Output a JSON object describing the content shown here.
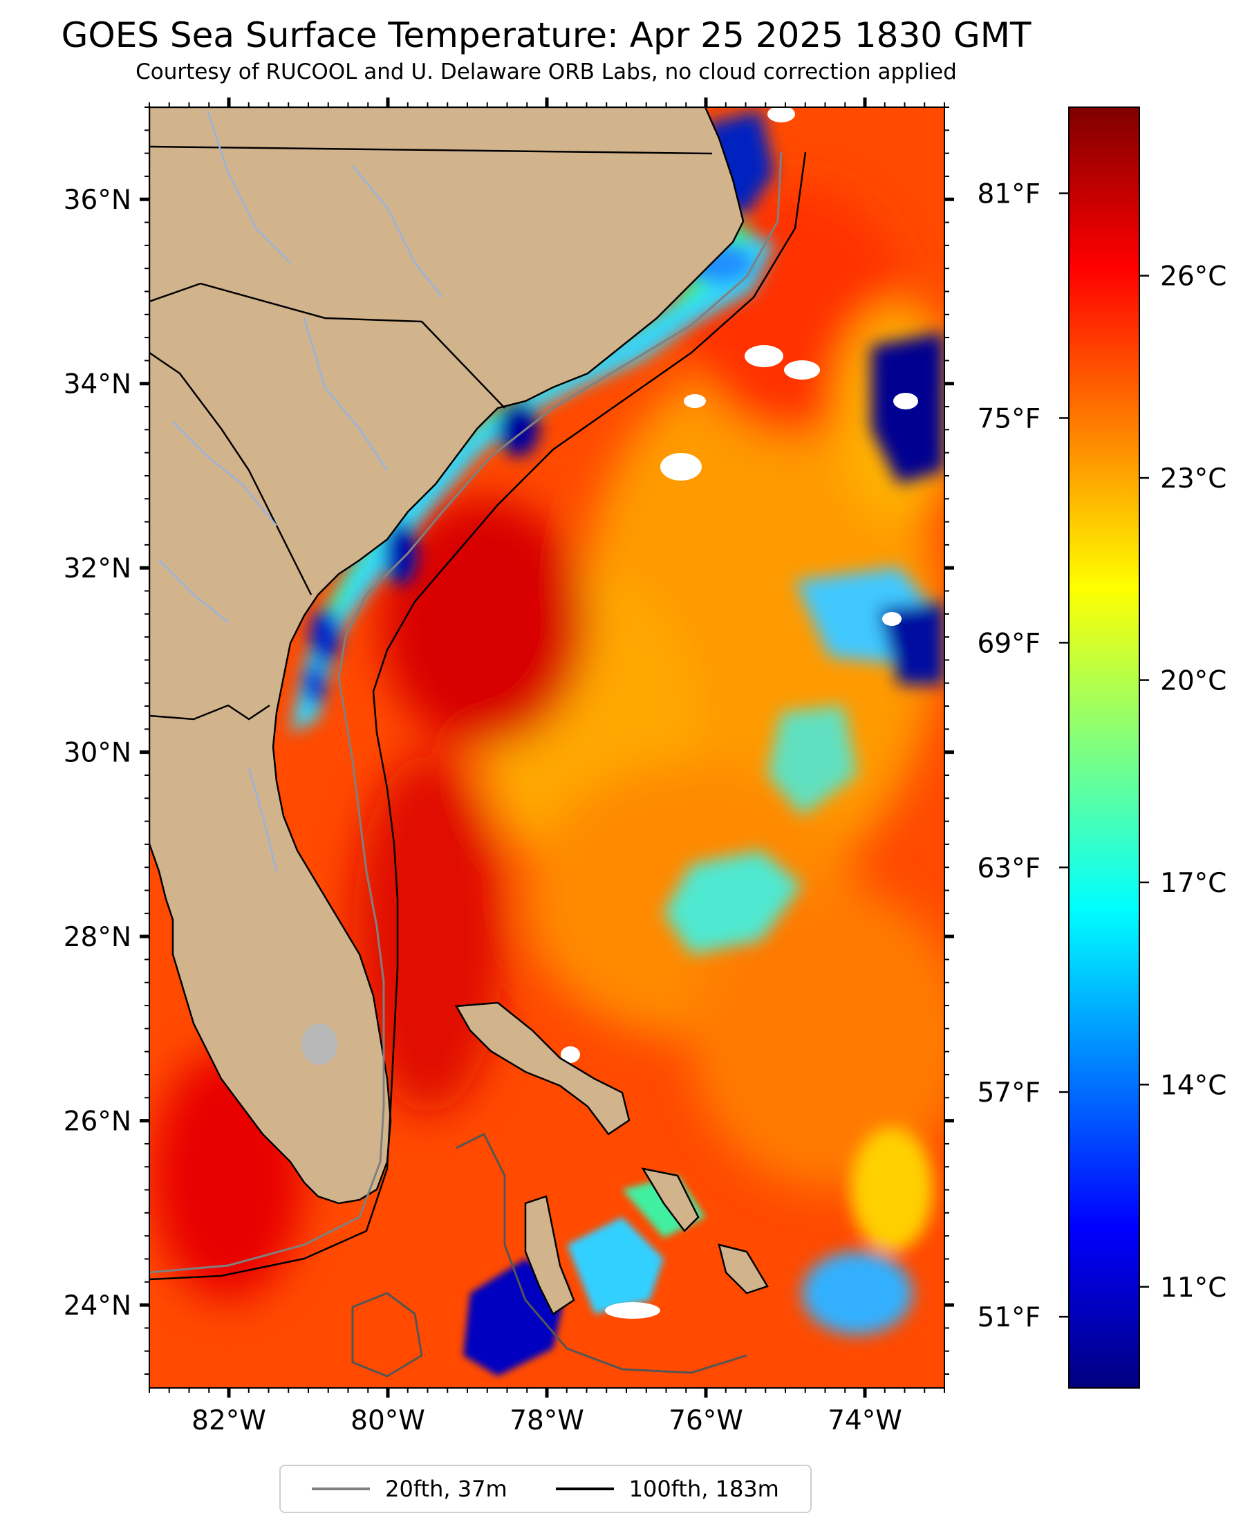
{
  "title": "GOES Sea Surface Temperature: Apr 25 2025 1830 GMT",
  "subtitle": "Courtesy of RUCOOL and U. Delaware ORB Labs, no cloud correction applied",
  "map": {
    "lon_range": [
      -83,
      -73
    ],
    "lat_range": [
      23.1,
      37.0
    ],
    "lon_ticks": [
      {
        "value": -82,
        "label": "82°W"
      },
      {
        "value": -80,
        "label": "80°W"
      },
      {
        "value": -78,
        "label": "78°W"
      },
      {
        "value": -76,
        "label": "76°W"
      },
      {
        "value": -74,
        "label": "74°W"
      }
    ],
    "lat_ticks": [
      {
        "value": 24,
        "label": "24°N"
      },
      {
        "value": 26,
        "label": "26°N"
      },
      {
        "value": 28,
        "label": "28°N"
      },
      {
        "value": 30,
        "label": "30°N"
      },
      {
        "value": 32,
        "label": "32°N"
      },
      {
        "value": 34,
        "label": "34°N"
      },
      {
        "value": 36,
        "label": "36°N"
      }
    ],
    "fahrenheit_ticks": [
      {
        "value": 51,
        "label": "51°F"
      },
      {
        "value": 57,
        "label": "57°F"
      },
      {
        "value": 63,
        "label": "63°F"
      },
      {
        "value": 69,
        "label": "69°F"
      },
      {
        "value": 75,
        "label": "75°F"
      },
      {
        "value": 81,
        "label": "81°F"
      }
    ],
    "land_color": "#d2b48c",
    "river_color": "#9ab3dc",
    "border_color": "#000000"
  },
  "colorbar": {
    "colormap": "jet",
    "range_c": [
      9.5,
      28.5
    ],
    "ticks": [
      {
        "value": 11,
        "label": "11°C"
      },
      {
        "value": 14,
        "label": "14°C"
      },
      {
        "value": 17,
        "label": "17°C"
      },
      {
        "value": 20,
        "label": "20°C"
      },
      {
        "value": 23,
        "label": "23°C"
      },
      {
        "value": 26,
        "label": "26°C"
      }
    ],
    "stops": [
      "#00007f",
      "#0000ff",
      "#007fff",
      "#00ffff",
      "#7fff7f",
      "#ffff00",
      "#ff7f00",
      "#ff0000",
      "#7f0000"
    ]
  },
  "legend": {
    "items": [
      {
        "label": "20fth, 37m",
        "color": "#808080"
      },
      {
        "label": "100fth, 183m",
        "color": "#000000"
      }
    ]
  }
}
